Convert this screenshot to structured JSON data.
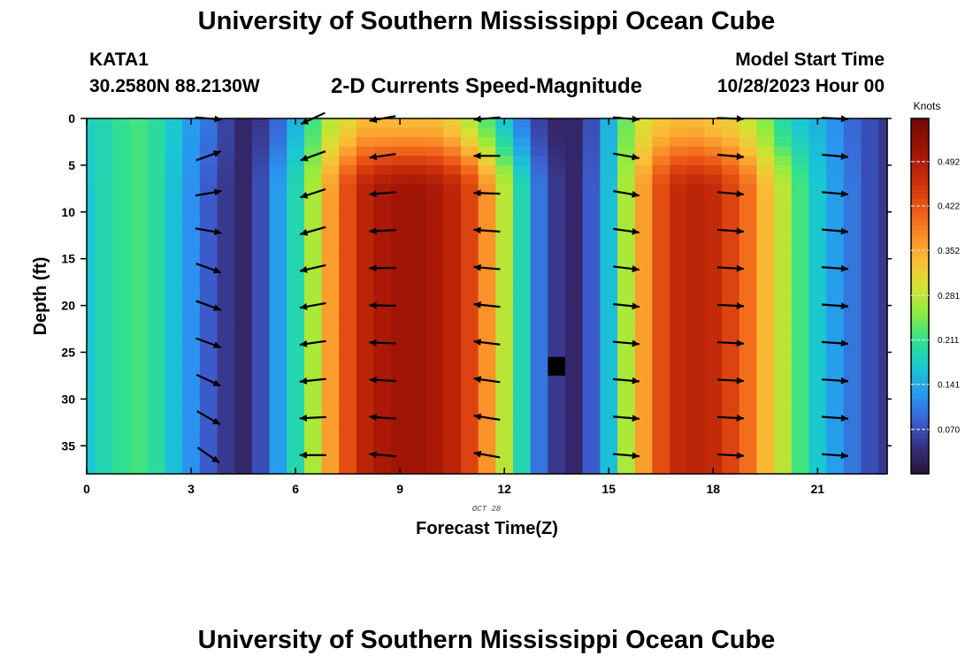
{
  "header": {
    "title": "University of Southern Mississippi Ocean Cube",
    "station_id": "KATA1",
    "station_coords": "30.2580N  88.2130W",
    "subtitle": "2-D Currents Speed-Magnitude",
    "model_label": "Model Start Time",
    "model_time": "10/28/2023 Hour 00"
  },
  "footer": {
    "title": "University of Southern Mississippi Ocean Cube"
  },
  "chart_data": {
    "type": "heatmap",
    "title": "2-D Currents Speed-Magnitude",
    "xlabel": "Forecast Time(Z)",
    "ylabel": "Depth (ft)",
    "x_date_label": "OCT 28",
    "colorbar_label": "Knots",
    "xlim": [
      0,
      23
    ],
    "ylim": [
      0,
      38
    ],
    "y_inverted": true,
    "x_ticks": [
      0,
      3,
      6,
      9,
      12,
      15,
      18,
      21
    ],
    "y_ticks": [
      0,
      5,
      10,
      15,
      20,
      25,
      30,
      35
    ],
    "colorbar_ticks": [
      "0.070",
      "0.141",
      "0.211",
      "0.281",
      "0.352",
      "0.422",
      "0.492"
    ],
    "colorbar_range": [
      0,
      0.56
    ],
    "hours": [
      0,
      0.5,
      1,
      1.5,
      2,
      2.5,
      3,
      3.5,
      4,
      4.5,
      5,
      5.5,
      6,
      6.5,
      7,
      7.5,
      8,
      8.5,
      9,
      9.5,
      10,
      10.5,
      11,
      11.5,
      12,
      12.5,
      13,
      13.5,
      14,
      14.5,
      15,
      15.5,
      16,
      16.5,
      17,
      17.5,
      18,
      18.5,
      19,
      19.5,
      20,
      20.5,
      21,
      21.5,
      22,
      22.5,
      23
    ],
    "surface_speed": [
      0.18,
      0.19,
      0.21,
      0.22,
      0.2,
      0.17,
      0.13,
      0.1,
      0.06,
      0.03,
      0.05,
      0.09,
      0.15,
      0.22,
      0.28,
      0.31,
      0.34,
      0.34,
      0.34,
      0.34,
      0.34,
      0.32,
      0.28,
      0.23,
      0.17,
      0.11,
      0.06,
      0.03,
      0.03,
      0.07,
      0.15,
      0.24,
      0.3,
      0.33,
      0.34,
      0.34,
      0.33,
      0.32,
      0.29,
      0.25,
      0.2,
      0.17,
      0.15,
      0.12,
      0.09,
      0.07,
      0.05
    ],
    "bottom_speed": [
      0.17,
      0.19,
      0.21,
      0.22,
      0.2,
      0.16,
      0.12,
      0.08,
      0.05,
      0.03,
      0.07,
      0.13,
      0.19,
      0.27,
      0.36,
      0.43,
      0.48,
      0.5,
      0.51,
      0.51,
      0.5,
      0.48,
      0.44,
      0.37,
      0.28,
      0.19,
      0.1,
      0.05,
      0.03,
      0.08,
      0.16,
      0.27,
      0.36,
      0.43,
      0.47,
      0.48,
      0.47,
      0.44,
      0.4,
      0.34,
      0.28,
      0.22,
      0.17,
      0.13,
      0.1,
      0.07,
      0.05
    ],
    "missing_cell": {
      "hour": 13.5,
      "depth_from": 25.5,
      "depth_to": 27.5
    },
    "vector_hours": [
      3.5,
      6.5,
      8.5,
      11.5,
      15.5,
      18.5,
      21.5
    ],
    "vector_depths": [
      0,
      4,
      8,
      12,
      16,
      20,
      24,
      28,
      32,
      36
    ],
    "vector_angles_deg": [
      [
        -5,
        20,
        10,
        -10,
        -20,
        -20,
        -20,
        -25,
        -30,
        -35
      ],
      [
        205,
        200,
        198,
        196,
        193,
        190,
        188,
        186,
        183,
        180
      ],
      [
        190,
        188,
        185,
        183,
        181,
        179,
        178,
        177,
        176,
        175
      ],
      [
        185,
        180,
        178,
        176,
        175,
        174,
        173,
        172,
        171,
        170
      ],
      [
        -5,
        -10,
        -10,
        -8,
        -7,
        -6,
        -5,
        -5,
        -5,
        -5
      ],
      [
        -2,
        -5,
        -5,
        -4,
        -3,
        -3,
        -3,
        -3,
        -3,
        -3
      ],
      [
        -3,
        -5,
        -5,
        -5,
        -4,
        -4,
        -4,
        -4,
        -4,
        -4
      ]
    ]
  }
}
